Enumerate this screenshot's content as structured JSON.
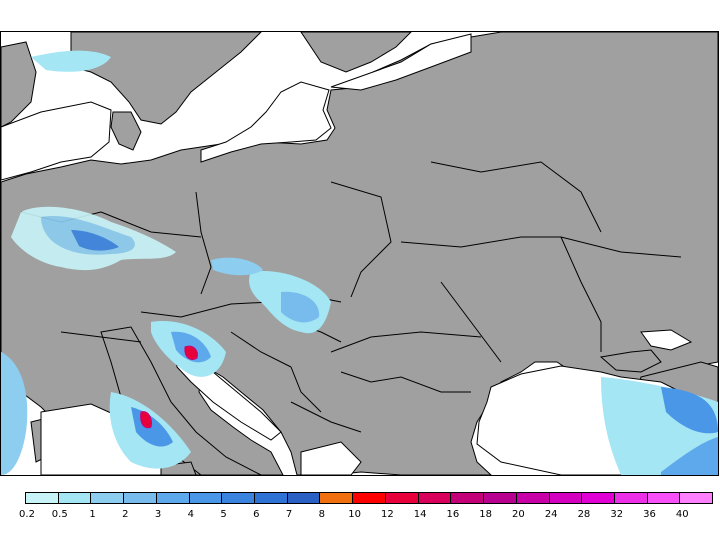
{
  "map": {
    "land_color": "#a0a0a0",
    "sea_color": "#ffffff",
    "border_color": "#000000"
  },
  "legend": {
    "labels": [
      "0.2",
      "0.5",
      "1",
      "2",
      "3",
      "4",
      "5",
      "6",
      "7",
      "8",
      "10",
      "12",
      "14",
      "16",
      "18",
      "20",
      "24",
      "28",
      "32",
      "36",
      "40"
    ],
    "colors": [
      "#c8f4f8",
      "#a4e6f4",
      "#8ccdf0",
      "#78bcee",
      "#5ea9ec",
      "#4a97e8",
      "#3a84e0",
      "#2e72d6",
      "#2a60c4",
      "#f07010",
      "#ff0000",
      "#e8003c",
      "#d8005a",
      "#c40078",
      "#b80090",
      "#c800a8",
      "#d400c0",
      "#e000d4",
      "#ec30e8",
      "#f850f8",
      "#ff80ff"
    ]
  }
}
